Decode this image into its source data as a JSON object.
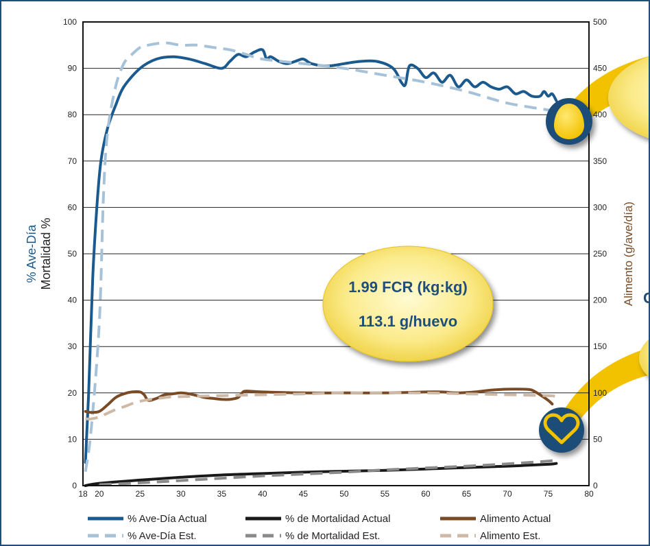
{
  "chart_data": {
    "type": "line",
    "axes": {
      "y_left_label_1": "% Ave-Día",
      "y_left_label_2": "Mortalidad %",
      "y_right_label": "Alimento (g/ave/día)",
      "x_ticks": [
        "18",
        "20",
        "25",
        "30",
        "35",
        "40",
        "45",
        "50",
        "55",
        "60",
        "65",
        "70",
        "75",
        "80"
      ],
      "y_left_ticks": [
        "0",
        "10",
        "20",
        "30",
        "40",
        "50",
        "60",
        "70",
        "80",
        "90",
        "100"
      ],
      "y_right_ticks": [
        "0",
        "50",
        "100",
        "150",
        "200",
        "250",
        "300",
        "350",
        "400",
        "450",
        "500"
      ],
      "xlim": [
        18,
        80
      ],
      "ylim_left": [
        0,
        100
      ],
      "ylim_right": [
        0,
        500
      ],
      "grid": true
    },
    "callout": {
      "line1": "1.99 FCR (kg:kg)",
      "line2": "113.1 g/huevo"
    },
    "legend": [
      {
        "label": "% Ave-Día Actual",
        "color": "#1b5a8e",
        "style": "solid"
      },
      {
        "label": "% de Mortalidad Actual",
        "color": "#1a1a1a",
        "style": "solid"
      },
      {
        "label": "Alimento Actual",
        "color": "#7a4a24",
        "style": "solid"
      },
      {
        "label": "% Ave-Día Est.",
        "color": "#a6c2d9",
        "style": "dashed"
      },
      {
        "label": "% de Mortalidad Est.",
        "color": "#8a8a8a",
        "style": "dashed"
      },
      {
        "label": "Alimento Est.",
        "color": "#cdb9a5",
        "style": "dashed"
      }
    ],
    "series": [
      {
        "name": "% Ave-Día Actual",
        "axis": "left",
        "color": "#1b5a8e",
        "dashed": false,
        "width": 4,
        "x": [
          18.3,
          18.7,
          19.2,
          19.7,
          20.2,
          21,
          22,
          23,
          25,
          27,
          29,
          31,
          33,
          35,
          36,
          37,
          38,
          39,
          40,
          40.5,
          41,
          42,
          43,
          44,
          45,
          46,
          48,
          50,
          52,
          54,
          56,
          57,
          57.5,
          58,
          59,
          60,
          61,
          62,
          63,
          64,
          65,
          66,
          67,
          68,
          69,
          70,
          71,
          72,
          73,
          74,
          74.5,
          75,
          75.5,
          76
        ],
        "y": [
          5,
          20,
          45,
          60,
          70,
          77,
          82,
          86,
          90,
          92,
          92.5,
          92,
          91,
          90,
          91.5,
          93,
          92.5,
          93.5,
          94,
          92,
          92.5,
          91.5,
          91,
          91.5,
          92,
          91,
          90.5,
          91,
          91.5,
          91.5,
          90,
          87,
          86.5,
          90.5,
          90,
          88,
          89,
          87,
          88.5,
          86,
          87.5,
          86,
          87,
          86,
          85.5,
          86,
          84.5,
          85,
          84,
          84,
          85,
          84,
          84.5,
          83
        ]
      },
      {
        "name": "% Ave-Día Est.",
        "axis": "left",
        "color": "#a6c2d9",
        "dashed": true,
        "width": 4,
        "x": [
          18.3,
          19,
          20,
          20.5,
          21,
          22,
          23,
          24,
          25,
          26,
          28,
          30,
          32,
          34,
          36,
          38,
          40,
          45,
          50,
          55,
          60,
          65,
          70,
          75,
          76
        ],
        "y": [
          3,
          12,
          35,
          62,
          76,
          86,
          91,
          93,
          94.5,
          95,
          95.5,
          95,
          95,
          94.5,
          94,
          93,
          92,
          91,
          90,
          88.5,
          87,
          85,
          82.5,
          81,
          80.5
        ]
      },
      {
        "name": "Alimento Actual",
        "axis": "right",
        "color": "#7a4a24",
        "dashed": false,
        "width": 4,
        "x": [
          18.3,
          19,
          20,
          21,
          22,
          23,
          24,
          25,
          25.5,
          26,
          27,
          28,
          29,
          30,
          31,
          32,
          33,
          34,
          35,
          36,
          37,
          37.5,
          38,
          40,
          45,
          50,
          55,
          60,
          62,
          64,
          66,
          68,
          70,
          72,
          73,
          74,
          75,
          75.5
        ],
        "y": [
          80,
          79,
          80,
          87,
          95,
          99,
          101,
          101,
          98,
          92,
          94,
          98,
          99,
          100,
          99,
          97,
          95,
          94,
          93,
          93,
          95,
          100,
          102,
          101,
          100,
          100,
          100,
          101,
          101,
          100,
          101,
          103,
          104,
          104,
          103,
          98,
          92,
          88
        ]
      },
      {
        "name": "Alimento Est.",
        "axis": "right",
        "color": "#cdb9a5",
        "dashed": true,
        "width": 4,
        "x": [
          18.3,
          19,
          20,
          21,
          22,
          23,
          25,
          28,
          30,
          35,
          40,
          45,
          50,
          55,
          60,
          65,
          70,
          75,
          76
        ],
        "y": [
          72,
          72,
          74,
          78,
          82,
          85,
          91,
          95,
          96,
          97,
          98,
          99,
          100,
          100,
          100,
          99,
          98,
          97,
          96
        ]
      },
      {
        "name": "% de Mortalidad Actual",
        "axis": "left",
        "color": "#1a1a1a",
        "dashed": false,
        "width": 4,
        "x": [
          18.3,
          20,
          25,
          30,
          35,
          40,
          45,
          50,
          55,
          60,
          65,
          70,
          75,
          76
        ],
        "y": [
          0,
          0.5,
          1.2,
          1.8,
          2.3,
          2.6,
          2.9,
          3.1,
          3.3,
          3.6,
          3.9,
          4.2,
          4.6,
          4.8
        ]
      },
      {
        "name": "% de Mortalidad Est.",
        "axis": "left",
        "color": "#8a8a8a",
        "dashed": true,
        "width": 4,
        "x": [
          20,
          25,
          30,
          35,
          40,
          45,
          50,
          55,
          60,
          65,
          70,
          75,
          76
        ],
        "y": [
          0.2,
          0.6,
          1.1,
          1.6,
          2.1,
          2.5,
          2.9,
          3.4,
          3.8,
          4.2,
          4.7,
          5.3,
          5.6
        ]
      }
    ]
  }
}
